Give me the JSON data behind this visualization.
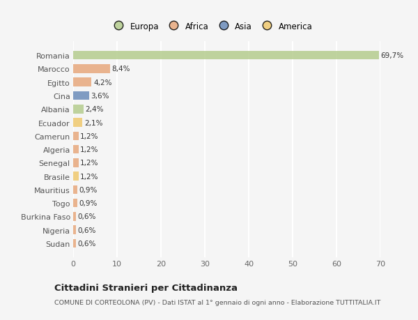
{
  "countries": [
    "Romania",
    "Marocco",
    "Egitto",
    "Cina",
    "Albania",
    "Ecuador",
    "Camerun",
    "Algeria",
    "Senegal",
    "Brasile",
    "Mauritius",
    "Togo",
    "Burkina Faso",
    "Nigeria",
    "Sudan"
  ],
  "values": [
    69.7,
    8.4,
    4.2,
    3.6,
    2.4,
    2.1,
    1.2,
    1.2,
    1.2,
    1.2,
    0.9,
    0.9,
    0.6,
    0.6,
    0.6
  ],
  "labels": [
    "69,7%",
    "8,4%",
    "4,2%",
    "3,6%",
    "2,4%",
    "2,1%",
    "1,2%",
    "1,2%",
    "1,2%",
    "1,2%",
    "0,9%",
    "0,9%",
    "0,6%",
    "0,6%",
    "0,6%"
  ],
  "colors": [
    "#b5cc8e",
    "#e8a87c",
    "#e8a87c",
    "#6b8cba",
    "#b5cc8e",
    "#f0c96e",
    "#e8a87c",
    "#e8a87c",
    "#e8a87c",
    "#f0c96e",
    "#e8a87c",
    "#e8a87c",
    "#e8a87c",
    "#e8a87c",
    "#e8a87c"
  ],
  "legend_labels": [
    "Europa",
    "Africa",
    "Asia",
    "America"
  ],
  "legend_colors": [
    "#b5cc8e",
    "#e8a87c",
    "#6b8cba",
    "#f0c96e"
  ],
  "title": "Cittadini Stranieri per Cittadinanza",
  "subtitle": "COMUNE DI CORTEOLONA (PV) - Dati ISTAT al 1° gennaio di ogni anno - Elaborazione TUTTITALIA.IT",
  "xlim": [
    0,
    70
  ],
  "xticks": [
    0,
    10,
    20,
    30,
    40,
    50,
    60,
    70
  ],
  "background_color": "#f5f5f5",
  "grid_color": "#ffffff",
  "bar_height": 0.65
}
